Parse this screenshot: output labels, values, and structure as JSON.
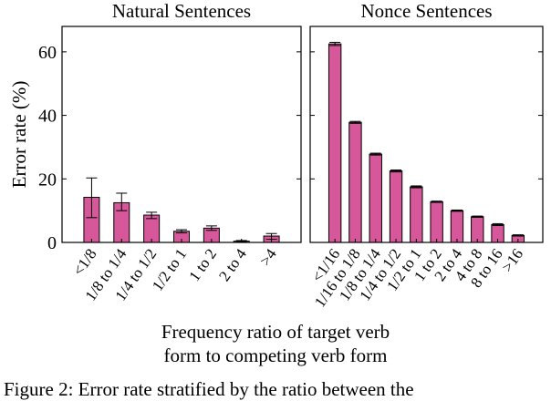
{
  "figure": {
    "xlabel_line1": "Frequency ratio of target verb",
    "xlabel_line2": "form to competing verb form",
    "caption_partial": "Figure 2: Error rate stratified by the ratio between the"
  },
  "colors": {
    "bar": "#d6579a",
    "edge": "#000000"
  },
  "chart_data": [
    {
      "type": "bar",
      "title": "Natural Sentences",
      "ylabel": "Error rate (%)",
      "ylim": [
        0,
        68
      ],
      "yticks": [
        0,
        20,
        40,
        60
      ],
      "categories": [
        "<1/8",
        "1/8 to 1/4",
        "1/4 to 1/2",
        "1/2 to 1",
        "1 to 2",
        "2 to 4",
        ">4"
      ],
      "values": [
        14.2,
        12.5,
        8.6,
        3.5,
        4.5,
        0.4,
        2.0
      ],
      "error_low": [
        7.8,
        10.0,
        7.5,
        3.0,
        3.8,
        0.2,
        1.0
      ],
      "error_high": [
        20.3,
        15.5,
        9.5,
        4.0,
        5.2,
        0.6,
        2.8
      ]
    },
    {
      "type": "bar",
      "title": "Nonce Sentences",
      "ylim": [
        0,
        68
      ],
      "yticks": [
        0,
        20,
        40,
        60
      ],
      "categories": [
        "<1/16",
        "1/16 to 1/8",
        "1/8 to 1/4",
        "1/4 to 1/2",
        "1/2 to 1",
        "1 to 2",
        "2 to 4",
        "4 to 8",
        "8 to 16",
        ">16"
      ],
      "values": [
        62.5,
        37.8,
        27.8,
        22.5,
        17.5,
        12.8,
        10.0,
        8.1,
        5.6,
        2.2
      ],
      "error_low": [
        62.0,
        37.5,
        27.5,
        22.2,
        17.2,
        12.6,
        9.8,
        7.9,
        5.3,
        2.0
      ],
      "error_high": [
        63.0,
        38.1,
        28.1,
        22.8,
        17.8,
        13.0,
        10.2,
        8.3,
        5.9,
        2.4
      ]
    }
  ]
}
